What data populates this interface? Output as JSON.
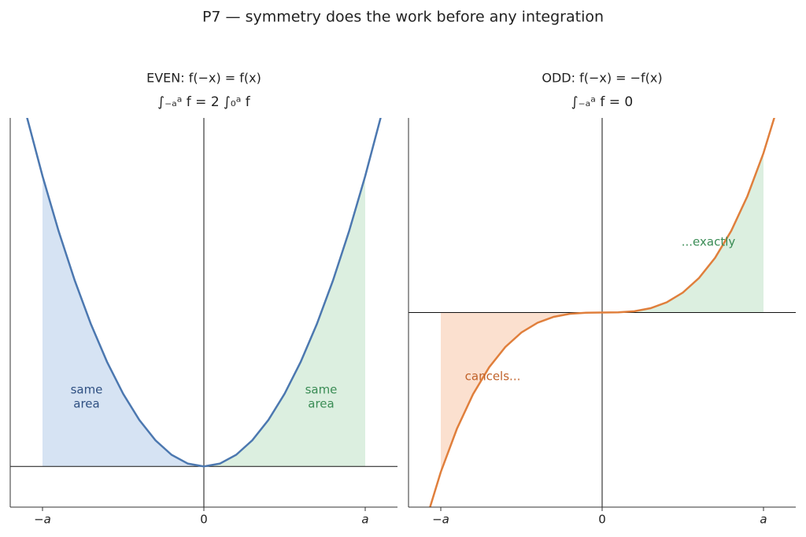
{
  "title": "P7 — symmetry does the work before any integration",
  "chart_data": [
    {
      "type": "line",
      "title": "EVEN:  f(−x) = f(x)",
      "subtitle": "∫₋ₐᵃ f = 2 ∫₀ᵃ f",
      "x": [
        -1.1,
        -1.0,
        -0.9,
        -0.8,
        -0.7,
        -0.6,
        -0.5,
        -0.4,
        -0.3,
        -0.2,
        -0.1,
        0,
        0.1,
        0.2,
        0.3,
        0.4,
        0.5,
        0.6,
        0.7,
        0.8,
        0.9,
        1.0,
        1.1
      ],
      "series": [
        {
          "color": "#4c78b0",
          "values": [
            1.21,
            1.0,
            0.81,
            0.64,
            0.49,
            0.36,
            0.25,
            0.16,
            0.09,
            0.04,
            0.01,
            0,
            0.01,
            0.04,
            0.09,
            0.16,
            0.25,
            0.36,
            0.49,
            0.64,
            0.81,
            1.0,
            1.21
          ]
        }
      ],
      "fills": [
        {
          "from": -1,
          "to": 0,
          "color": "#d6e3f3"
        },
        {
          "from": 0,
          "to": 1,
          "color": "#dcefe0"
        }
      ],
      "xlim": [
        -1.2,
        1.2
      ],
      "ylim": [
        -0.14,
        1.2
      ],
      "xticks": [
        {
          "value": -1,
          "label": "−a"
        },
        0,
        {
          "value": 1,
          "label": "a"
        }
      ],
      "annotations": [
        {
          "lines": [
            "same",
            "area"
          ],
          "color": "#2f5082"
        },
        {
          "lines": [
            "same",
            "area"
          ],
          "color": "#3a8c55"
        }
      ]
    },
    {
      "type": "line",
      "title": "ODD:  f(−x) = −f(x)",
      "subtitle": "∫₋ₐᵃ f = 0",
      "x": [
        -1.1,
        -1.0,
        -0.9,
        -0.8,
        -0.7,
        -0.6,
        -0.5,
        -0.4,
        -0.3,
        -0.2,
        -0.1,
        0,
        0.1,
        0.2,
        0.3,
        0.4,
        0.5,
        0.6,
        0.7,
        0.8,
        0.9,
        1.0,
        1.1
      ],
      "series": [
        {
          "color": "#e07f3c",
          "values": [
            -1.331,
            -1.0,
            -0.729,
            -0.512,
            -0.343,
            -0.216,
            -0.125,
            -0.064,
            -0.027,
            -0.008,
            -0.001,
            0,
            0.001,
            0.008,
            0.027,
            0.064,
            0.125,
            0.216,
            0.343,
            0.512,
            0.729,
            1.0,
            1.331
          ]
        }
      ],
      "fills": [
        {
          "from": -1,
          "to": 0,
          "color": "#fbe0cf"
        },
        {
          "from": 0,
          "to": 1,
          "color": "#dcefe0"
        }
      ],
      "xlim": [
        -1.2,
        1.2
      ],
      "ylim": [
        -1.22,
        1.22
      ],
      "xticks": [
        {
          "value": -1,
          "label": "−a"
        },
        0,
        {
          "value": 1,
          "label": "a"
        }
      ],
      "annotations": [
        {
          "lines": [
            "cancels..."
          ],
          "color": "#c0622a"
        },
        {
          "lines": [
            "...exactly"
          ],
          "color": "#3a8c55"
        }
      ]
    }
  ]
}
